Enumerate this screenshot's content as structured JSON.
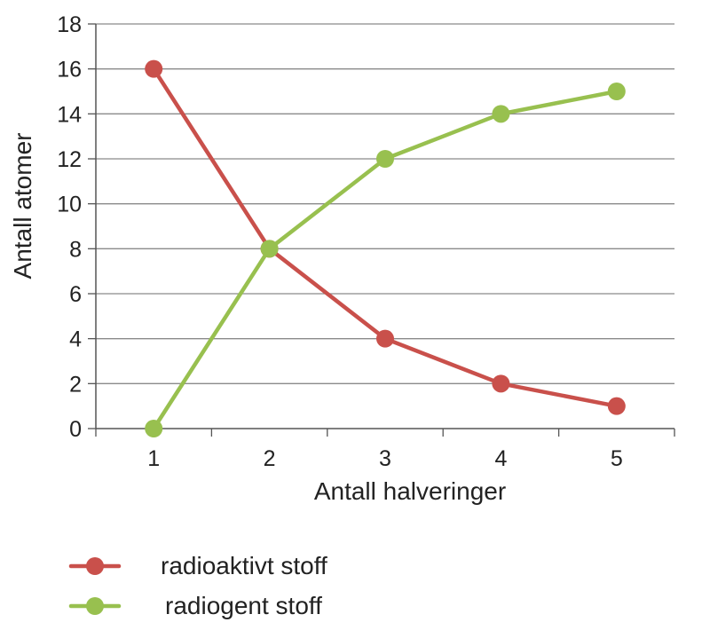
{
  "chart_data": {
    "type": "line",
    "x": [
      1,
      2,
      3,
      4,
      5
    ],
    "categories": [
      "1",
      "2",
      "3",
      "4",
      "5"
    ],
    "xlabel": "Antall halveringer",
    "ylabel": "Antall atomer",
    "ylim": [
      0,
      18
    ],
    "yticks": [
      0,
      2,
      4,
      6,
      8,
      10,
      12,
      14,
      16,
      18
    ],
    "grid": true,
    "legend_position": "bottom-left",
    "series": [
      {
        "name": "radioaktivt stoff",
        "values": [
          16,
          8,
          4,
          2,
          1
        ],
        "color": "#c9504b"
      },
      {
        "name": "radiogent stoff",
        "values": [
          0,
          8,
          12,
          14,
          15
        ],
        "color": "#98c04f"
      }
    ]
  }
}
